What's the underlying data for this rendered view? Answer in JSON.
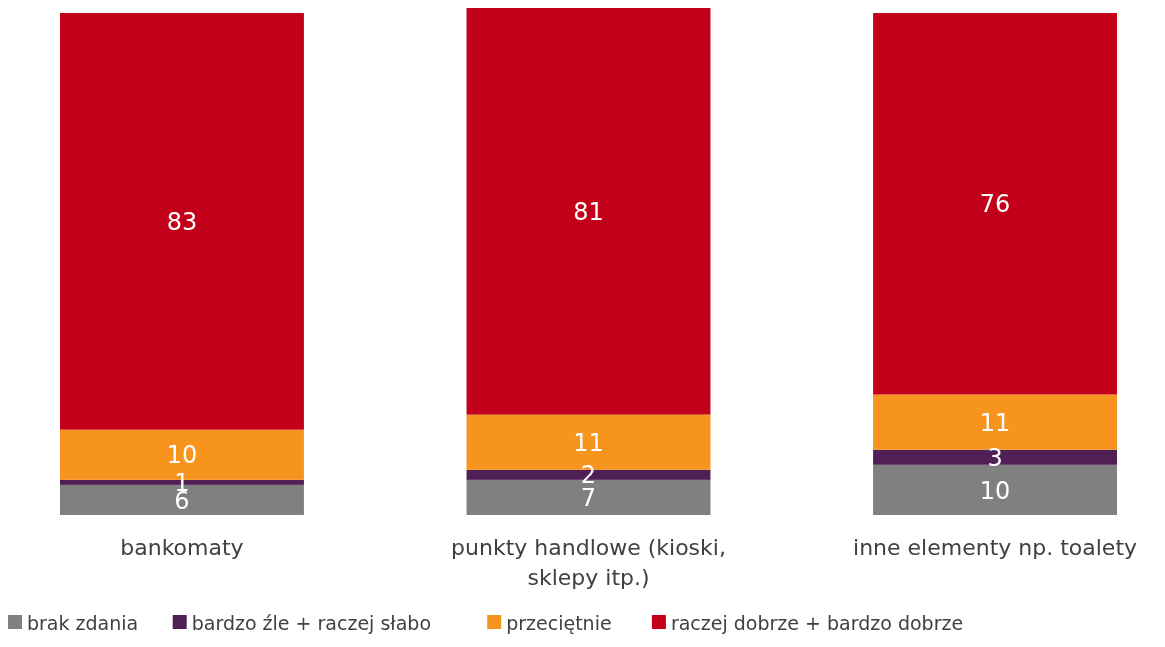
{
  "chart_data": {
    "type": "bar",
    "stacked": true,
    "categories": [
      "bankomaty",
      "punkty handlowe (kioski, sklepy itp.)",
      "inne elementy np. toalety"
    ],
    "series": [
      {
        "name": "brak zdania",
        "color": "#808080",
        "values": [
          6,
          7,
          10
        ]
      },
      {
        "name": "bardzo źle + raczej słabo",
        "color": "#4f1f56",
        "values": [
          1,
          2,
          3
        ]
      },
      {
        "name": "przeciętnie",
        "color": "#f7941d",
        "values": [
          10,
          11,
          11
        ]
      },
      {
        "name": "raczej dobrze + bardzo dobrze",
        "color": "#c3001a",
        "values": [
          83,
          81,
          76
        ]
      }
    ],
    "ylim": [
      0,
      101
    ],
    "tick_labels": "x",
    "data_labels": true,
    "legend": "bottom"
  }
}
